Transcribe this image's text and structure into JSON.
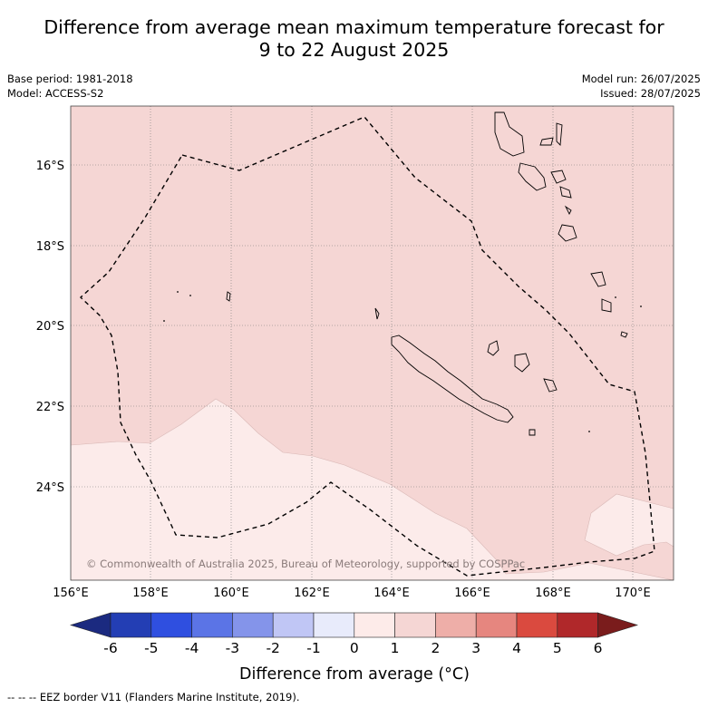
{
  "title_line1": "Difference from average mean maximum temperature forecast for",
  "title_line2": "9 to 22 August 2025",
  "base_period": "Base period: 1981-2018",
  "model": "Model: ACCESS-S2",
  "model_run": "Model run: 26/07/2025",
  "issued": "Issued: 28/07/2025",
  "copyright": "© Commonwealth of Australia 2025, Bureau of Meteorology, supported by COSPPac",
  "lon_ticks": [
    "156°E",
    "158°E",
    "160°E",
    "162°E",
    "164°E",
    "166°E",
    "168°E",
    "170°E"
  ],
  "lat_ticks": [
    "16°S",
    "18°S",
    "20°S",
    "22°S",
    "24°S"
  ],
  "colorbar": {
    "label": "Difference from average (°C)",
    "ticks": [
      "-6",
      "-5",
      "-4",
      "-3",
      "-2",
      "-1",
      "0",
      "1",
      "2",
      "3",
      "4",
      "5",
      "6"
    ],
    "colors": [
      "#1b2a80",
      "#233eb4",
      "#2f4fe0",
      "#5b74e6",
      "#8494ea",
      "#c0c6f5",
      "#e8ebfb",
      "#fdebe9",
      "#f5d6d4",
      "#eeaea8",
      "#e6867f",
      "#da4a3f",
      "#b0282a",
      "#7a1c1c"
    ]
  },
  "legend_footer": "-- -- -- EEZ border V11 (Flanders Marine Institute, 2019).",
  "map_colors": {
    "anomaly_1_2": "#f5d6d4",
    "anomaly_0_1": "#fcebea",
    "eez_line": "#000000"
  }
}
